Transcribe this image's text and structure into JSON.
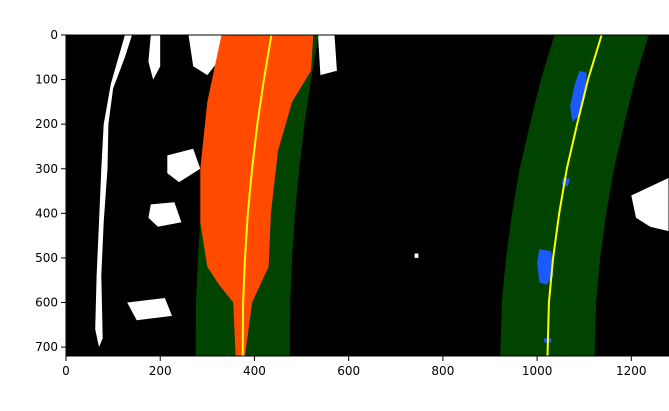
{
  "chart_data": {
    "type": "image",
    "title": "",
    "xlabel": "",
    "ylabel": "",
    "xlim": [
      0,
      1280
    ],
    "ylim": [
      720,
      0
    ],
    "xticks": [
      0,
      200,
      400,
      600,
      800,
      1000,
      1200
    ],
    "yticks": [
      0,
      100,
      200,
      300,
      400,
      500,
      600,
      700
    ],
    "xtick_labels": [
      "0",
      "200",
      "400",
      "600",
      "800",
      "1000",
      "1200"
    ],
    "ytick_labels": [
      "0",
      "100",
      "200",
      "300",
      "400",
      "500",
      "600",
      "700"
    ],
    "grid": false,
    "colors": {
      "background": "#000000",
      "binary_pixels": "#ffffff",
      "lane_window": "#004400",
      "left_lane_pixels": "#ff4a00",
      "right_lane_pixels": "#1a5aff",
      "fit_line": "#ffff00"
    },
    "left_fit": {
      "points": [
        [
          436,
          0
        ],
        [
          420,
          100
        ],
        [
          406,
          200
        ],
        [
          395,
          300
        ],
        [
          386,
          400
        ],
        [
          380,
          500
        ],
        [
          376,
          600
        ],
        [
          375,
          720
        ]
      ],
      "window_half_width": 100
    },
    "right_fit": {
      "points": [
        [
          1137,
          0
        ],
        [
          1108,
          100
        ],
        [
          1085,
          200
        ],
        [
          1063,
          300
        ],
        [
          1047,
          400
        ],
        [
          1034,
          500
        ],
        [
          1025,
          600
        ],
        [
          1022,
          720
        ]
      ],
      "window_half_width": 100
    },
    "left_lane_pixels": [
      [
        [
          330,
          0
        ],
        [
          525,
          0
        ],
        [
          520,
          80
        ],
        [
          480,
          150
        ],
        [
          450,
          260
        ],
        [
          435,
          400
        ],
        [
          430,
          520
        ],
        [
          395,
          600
        ],
        [
          380,
          720
        ],
        [
          360,
          720
        ],
        [
          355,
          600
        ],
        [
          325,
          560
        ],
        [
          300,
          520
        ],
        [
          285,
          420
        ],
        [
          285,
          300
        ],
        [
          300,
          150
        ]
      ]
    ],
    "right_lane_pixels": [
      [
        [
          1090,
          80
        ],
        [
          1105,
          85
        ],
        [
          1102,
          140
        ],
        [
          1090,
          180
        ],
        [
          1075,
          195
        ],
        [
          1070,
          160
        ],
        [
          1080,
          110
        ]
      ],
      [
        [
          1055,
          320
        ],
        [
          1070,
          322
        ],
        [
          1065,
          340
        ],
        [
          1052,
          335
        ]
      ],
      [
        [
          1005,
          480
        ],
        [
          1030,
          485
        ],
        [
          1035,
          540
        ],
        [
          1020,
          560
        ],
        [
          1005,
          555
        ],
        [
          1000,
          510
        ]
      ],
      [
        [
          1015,
          680
        ],
        [
          1030,
          680
        ],
        [
          1030,
          690
        ],
        [
          1015,
          690
        ]
      ]
    ],
    "binary_pixel_regions": [
      [
        [
          125,
          0
        ],
        [
          140,
          0
        ],
        [
          125,
          50
        ],
        [
          100,
          120
        ],
        [
          90,
          200
        ],
        [
          88,
          300
        ],
        [
          80,
          420
        ],
        [
          75,
          540
        ],
        [
          78,
          680
        ],
        [
          70,
          700
        ],
        [
          62,
          660
        ],
        [
          65,
          540
        ],
        [
          70,
          420
        ],
        [
          75,
          300
        ],
        [
          80,
          200
        ],
        [
          95,
          110
        ]
      ],
      [
        [
          180,
          0
        ],
        [
          200,
          0
        ],
        [
          200,
          70
        ],
        [
          185,
          100
        ],
        [
          175,
          60
        ]
      ],
      [
        [
          260,
          0
        ],
        [
          330,
          0
        ],
        [
          330,
          50
        ],
        [
          300,
          90
        ],
        [
          270,
          70
        ]
      ],
      [
        [
          535,
          0
        ],
        [
          570,
          0
        ],
        [
          575,
          80
        ],
        [
          540,
          90
        ]
      ],
      [
        [
          215,
          270
        ],
        [
          270,
          255
        ],
        [
          285,
          300
        ],
        [
          240,
          330
        ],
        [
          215,
          310
        ]
      ],
      [
        [
          180,
          380
        ],
        [
          230,
          375
        ],
        [
          245,
          420
        ],
        [
          195,
          430
        ],
        [
          175,
          410
        ]
      ],
      [
        [
          130,
          600
        ],
        [
          210,
          590
        ],
        [
          225,
          630
        ],
        [
          150,
          640
        ]
      ],
      [
        [
          300,
          560
        ],
        [
          330,
          570
        ],
        [
          325,
          700
        ],
        [
          300,
          710
        ],
        [
          290,
          620
        ]
      ],
      [
        [
          1200,
          360
        ],
        [
          1280,
          320
        ],
        [
          1280,
          440
        ],
        [
          1240,
          430
        ],
        [
          1210,
          410
        ]
      ],
      [
        [
          740,
          490
        ],
        [
          748,
          490
        ],
        [
          748,
          500
        ],
        [
          740,
          500
        ]
      ],
      [
        [
          950,
          500
        ],
        [
          1000,
          495
        ],
        [
          1000,
          505
        ],
        [
          950,
          510
        ]
      ]
    ]
  }
}
